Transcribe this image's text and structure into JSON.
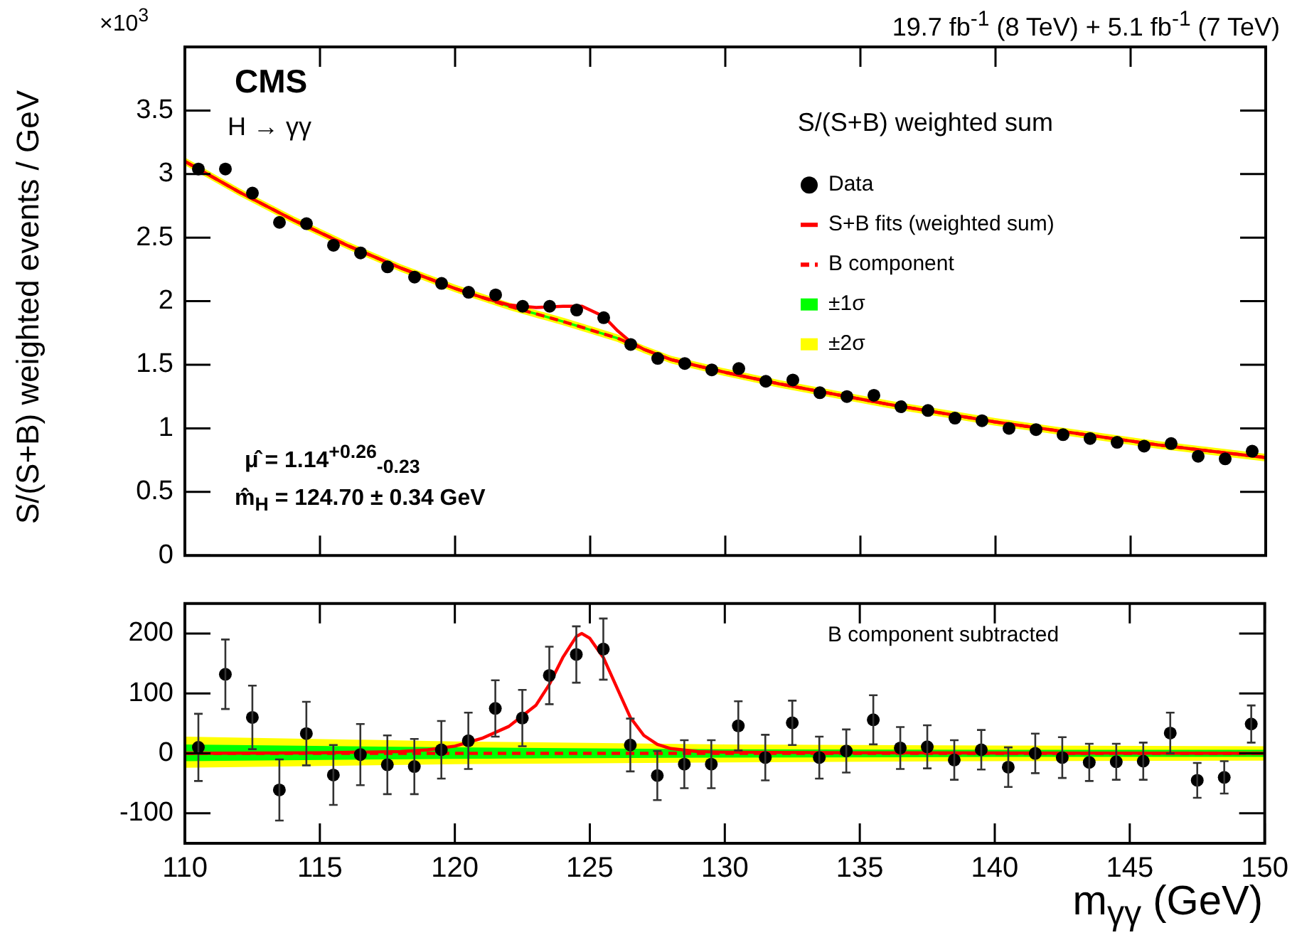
{
  "chart_data": [
    {
      "type": "scatter",
      "title": "19.7 fb$^{-1}$ (8 TeV) + 5.1 fb$^{-1}$ (7 TeV)",
      "ylabel": "S/(S+B) weighted events / GeV",
      "legend_title": "S/(S+B) weighted sum",
      "legend": "top right",
      "tick_labels": "y",
      "grid": false,
      "annotations": [
        "CMS",
        "H → γγ",
        "μ̂  = 1.14$^{+0.26}$$_{-0.23}$",
        "m̂$_{H}$ = 124.70 ± 0.34 GeV",
        "×10$^{3}$"
      ],
      "xlim": [
        110,
        150
      ],
      "xticks": [
        110,
        115,
        120,
        125,
        130,
        135,
        140,
        145,
        150
      ],
      "ylim": [
        0,
        4
      ],
      "yticks": [
        0,
        0.5,
        1,
        1.5,
        2,
        2.5,
        3,
        3.5
      ],
      "x": [
        110.5,
        111.5,
        112.5,
        113.5,
        114.5,
        115.5,
        116.5,
        117.5,
        118.5,
        119.5,
        120.5,
        121.5,
        122.5,
        123.5,
        124.5,
        125.5,
        126.5,
        127.5,
        128.5,
        129.5,
        130.5,
        131.5,
        132.5,
        133.5,
        134.5,
        135.5,
        136.5,
        137.5,
        138.5,
        139.5,
        140.5,
        141.5,
        142.5,
        143.5,
        144.5,
        145.5,
        146.5,
        147.5,
        148.5,
        149.5
      ],
      "series": [
        {
          "name": "±2σ",
          "type": "line",
          "color": "#ffff00",
          "x": [
            110,
            112,
            114,
            116,
            118,
            120,
            122,
            124,
            126,
            127,
            128,
            130,
            132,
            134,
            136,
            138,
            140,
            142,
            144,
            146,
            148,
            150
          ],
          "values": [
            null,
            null,
            null,
            null,
            null,
            null,
            null,
            null,
            null,
            null,
            null,
            null,
            null,
            null,
            null,
            null,
            null,
            null,
            null,
            null,
            null,
            null
          ],
          "lower": [
            3.07,
            2.83,
            2.61,
            2.41,
            2.23,
            2.07,
            1.93,
            1.81,
            1.68,
            1.59,
            1.51,
            1.41,
            1.32,
            1.24,
            1.16,
            1.09,
            1.02,
            0.96,
            0.9,
            0.84,
            0.79,
            0.74
          ],
          "upper": [
            3.13,
            2.89,
            2.67,
            2.47,
            2.29,
            2.13,
            1.99,
            1.87,
            1.74,
            1.65,
            1.57,
            1.47,
            1.38,
            1.3,
            1.22,
            1.15,
            1.08,
            1.02,
            0.96,
            0.9,
            0.85,
            0.8
          ]
        },
        {
          "name": "±1σ",
          "type": "line",
          "color": "#00ff00",
          "x": [
            110,
            112,
            114,
            116,
            118,
            120,
            122,
            124,
            126,
            127,
            128,
            130,
            132,
            134,
            136,
            138,
            140,
            142,
            144,
            146,
            148,
            150
          ],
          "values": [
            null,
            null,
            null,
            null,
            null,
            null,
            null,
            null,
            null,
            null,
            null,
            null,
            null,
            null,
            null,
            null,
            null,
            null,
            null,
            null,
            null,
            null
          ],
          "lower": [
            3.09,
            2.85,
            2.63,
            2.43,
            2.25,
            2.09,
            1.95,
            1.83,
            1.7,
            1.61,
            1.53,
            1.43,
            1.34,
            1.26,
            1.18,
            1.11,
            1.04,
            0.98,
            0.92,
            0.86,
            0.81,
            0.76
          ],
          "upper": [
            3.11,
            2.87,
            2.65,
            2.45,
            2.27,
            2.11,
            1.97,
            1.85,
            1.72,
            1.63,
            1.55,
            1.45,
            1.36,
            1.28,
            1.2,
            1.13,
            1.06,
            1.0,
            0.94,
            0.88,
            0.83,
            0.78
          ]
        },
        {
          "name": "B component",
          "type": "line",
          "color": "#ff0000",
          "line_style": "dashed",
          "x": [
            110,
            112,
            114,
            116,
            118,
            120,
            122,
            124,
            126,
            127,
            128,
            130,
            132,
            134,
            136,
            138,
            140,
            142,
            144,
            146,
            148,
            150
          ],
          "values": [
            3.1,
            2.86,
            2.64,
            2.44,
            2.26,
            2.1,
            1.96,
            1.84,
            1.71,
            1.62,
            1.54,
            1.44,
            1.35,
            1.27,
            1.19,
            1.12,
            1.05,
            0.99,
            0.93,
            0.87,
            0.82,
            0.77
          ]
        },
        {
          "name": "S+B fits (weighted sum)",
          "type": "line",
          "color": "#ff0000",
          "line_style": "solid",
          "x": [
            110,
            112,
            114,
            116,
            118,
            120,
            121,
            122,
            123,
            124,
            124.7,
            125.5,
            126,
            126.5,
            127,
            128,
            130,
            132,
            134,
            136,
            138,
            140,
            142,
            144,
            146,
            148,
            150
          ],
          "values": [
            3.1,
            2.86,
            2.64,
            2.44,
            2.26,
            2.1,
            2.03,
            1.97,
            1.95,
            1.96,
            1.96,
            1.88,
            1.77,
            1.68,
            1.62,
            1.54,
            1.44,
            1.35,
            1.27,
            1.19,
            1.12,
            1.05,
            0.99,
            0.93,
            0.87,
            0.82,
            0.77
          ]
        },
        {
          "name": "Data",
          "type": "scatter",
          "marker": "circle",
          "color": "#000000",
          "values": [
            3.04,
            3.04,
            2.85,
            2.62,
            2.61,
            2.44,
            2.38,
            2.27,
            2.19,
            2.14,
            2.07,
            2.05,
            1.96,
            1.96,
            1.93,
            1.87,
            1.66,
            1.55,
            1.51,
            1.46,
            1.47,
            1.37,
            1.38,
            1.28,
            1.25,
            1.26,
            1.17,
            1.14,
            1.08,
            1.06,
            1.0,
            0.99,
            0.95,
            0.92,
            0.89,
            0.86,
            0.88,
            0.78,
            0.76,
            0.82
          ]
        }
      ]
    },
    {
      "type": "scatter",
      "xlabel": "m$_{γγ}$ (GeV)",
      "grid": false,
      "annotations": [
        "B component subtracted"
      ],
      "xlim": [
        110,
        150
      ],
      "xticks": [
        110,
        115,
        120,
        125,
        130,
        135,
        140,
        145,
        150
      ],
      "ylim": [
        -150,
        250
      ],
      "yticks": [
        -100,
        0,
        100,
        200
      ],
      "x": [
        110.5,
        111.5,
        112.5,
        113.5,
        114.5,
        115.5,
        116.5,
        117.5,
        118.5,
        119.5,
        120.5,
        121.5,
        122.5,
        123.5,
        124.5,
        125.5,
        126.5,
        127.5,
        128.5,
        129.5,
        130.5,
        131.5,
        132.5,
        133.5,
        134.5,
        135.5,
        136.5,
        137.5,
        138.5,
        139.5,
        140.5,
        141.5,
        142.5,
        143.5,
        144.5,
        145.5,
        146.5,
        147.5,
        148.5,
        149.5
      ],
      "series": [
        {
          "type": "line",
          "color": "#ffff00",
          "x": [
            110,
            120,
            130,
            140,
            150
          ],
          "values": [
            null,
            null,
            null,
            null,
            null
          ],
          "lower": [
            -24,
            -18,
            -15,
            -13,
            -12
          ],
          "upper": [
            28,
            20,
            15,
            13,
            12
          ]
        },
        {
          "type": "line",
          "color": "#00ff00",
          "x": [
            110,
            120,
            130,
            140,
            150
          ],
          "values": [
            null,
            null,
            null,
            null,
            null
          ],
          "lower": [
            -13,
            -9,
            -7,
            -6,
            -6
          ],
          "upper": [
            15,
            10,
            7,
            6,
            6
          ]
        },
        {
          "type": "line",
          "color": "#ff0000",
          "line_style": "dashed",
          "x": [
            110,
            150
          ],
          "values": [
            0,
            0
          ]
        },
        {
          "type": "line",
          "color": "#ff0000",
          "line_style": "solid",
          "x": [
            110,
            115,
            118,
            119,
            120,
            121,
            122,
            123,
            123.5,
            124,
            124.5,
            124.7,
            125,
            125.5,
            126,
            126.5,
            127,
            127.5,
            128,
            129,
            130,
            135,
            150
          ],
          "values": [
            0,
            1,
            3,
            6,
            12,
            25,
            45,
            80,
            115,
            160,
            195,
            200,
            192,
            160,
            110,
            60,
            30,
            15,
            8,
            3,
            2,
            1,
            0
          ]
        },
        {
          "type": "scatter",
          "marker": "circle",
          "color": "#000000",
          "values": [
            10,
            132,
            60,
            -61,
            33,
            -36,
            -2,
            -19,
            -22,
            6,
            21,
            75,
            59,
            130,
            165,
            174,
            14,
            -37,
            -18,
            -18,
            46,
            -7,
            51,
            -7,
            4,
            56,
            9,
            11,
            -11,
            6,
            -23,
            0,
            -7,
            -15,
            -14,
            -13,
            34,
            -45,
            -40,
            49
          ],
          "errors": [
            56,
            58,
            53,
            51,
            53,
            50,
            51,
            49,
            46,
            48,
            47,
            47,
            47,
            48,
            47,
            51,
            44,
            41,
            40,
            40,
            41,
            38,
            37,
            35,
            36,
            41,
            35,
            36,
            33,
            33,
            33,
            33,
            34,
            31,
            30,
            31,
            34,
            29,
            27,
            31
          ]
        }
      ]
    }
  ]
}
